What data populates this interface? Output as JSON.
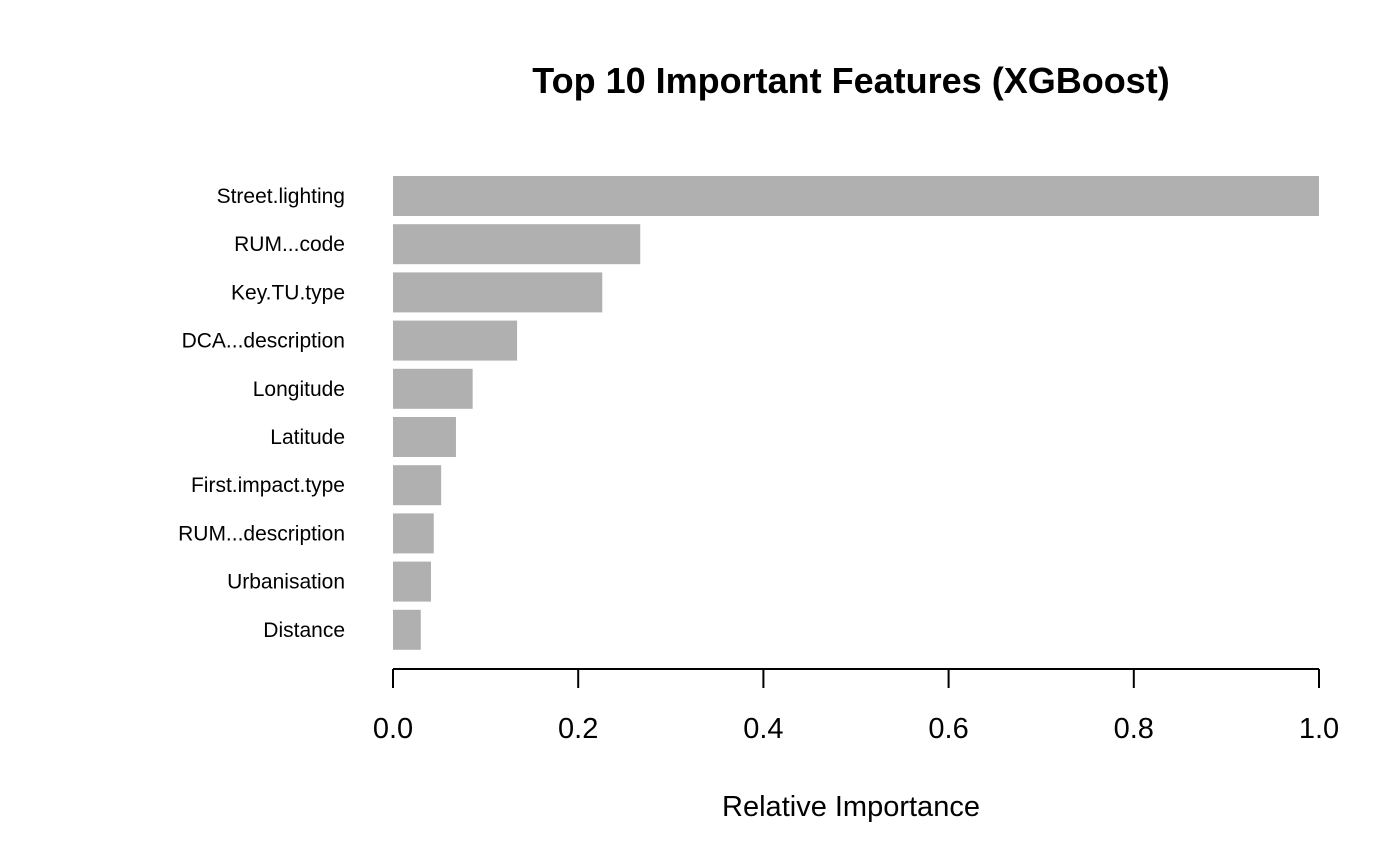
{
  "chart_data": {
    "type": "bar",
    "orientation": "horizontal",
    "title": "Top 10 Important Features (XGBoost)",
    "xlabel": "Relative Importance",
    "ylabel": "",
    "xlim": [
      0,
      1
    ],
    "x_ticks": [
      "0.0",
      "0.2",
      "0.4",
      "0.6",
      "0.8",
      "1.0"
    ],
    "x_tick_values": [
      0,
      0.2,
      0.4,
      0.6,
      0.8,
      1.0
    ],
    "categories": [
      "Street.lighting",
      "RUM...code",
      "Key.TU.type",
      "DCA...description",
      "Longitude",
      "Latitude",
      "First.impact.type",
      "RUM...description",
      "Urbanisation",
      "Distance"
    ],
    "values": [
      1.0,
      0.267,
      0.226,
      0.134,
      0.086,
      0.068,
      0.052,
      0.044,
      0.041,
      0.03
    ],
    "bar_color": "#b0b0b0",
    "grid": false,
    "legend": "none"
  }
}
